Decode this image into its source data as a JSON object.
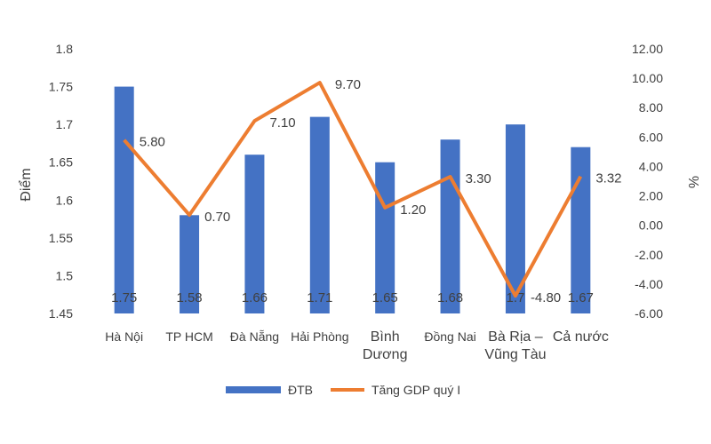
{
  "chart_data": {
    "type": "bar",
    "categories": [
      [
        "Hà Nội"
      ],
      [
        "TP HCM"
      ],
      [
        "Đà Nẵng"
      ],
      [
        "Hải Phòng"
      ],
      [
        "Bình",
        "Dương"
      ],
      [
        "Đồng Nai"
      ],
      [
        "Bà Rịa –",
        "Vũng Tàu"
      ],
      [
        "Cả nước"
      ]
    ],
    "series": [
      {
        "name": "ĐTB",
        "kind": "bar",
        "axis": "left",
        "color": "#4472C4",
        "values": [
          1.75,
          1.58,
          1.66,
          1.71,
          1.65,
          1.68,
          1.7,
          1.67
        ],
        "labels": [
          "1.75",
          "1.58",
          "1.66",
          "1.71",
          "1.65",
          "1.68",
          "1.7",
          "1.67"
        ]
      },
      {
        "name": "Tăng GDP quý I",
        "kind": "line",
        "axis": "right",
        "color": "#ED7D31",
        "values": [
          5.8,
          0.7,
          7.1,
          9.7,
          1.2,
          3.3,
          -4.8,
          3.32
        ],
        "labels": [
          "5.80",
          "0.70",
          "7.10",
          "9.70",
          "1.20",
          "3.30",
          "-4.80",
          "3.32"
        ]
      }
    ],
    "ylabel": "Điểm",
    "y2label": "%",
    "ylim": [
      1.45,
      1.8
    ],
    "yticks": [
      "1.8",
      "1.75",
      "1.7",
      "1.65",
      "1.6",
      "1.55",
      "1.5",
      "1.45"
    ],
    "y2lim": [
      -6,
      12
    ],
    "y2ticks": [
      "12.00",
      "10.00",
      "8.00",
      "6.00",
      "4.00",
      "2.00",
      "0.00",
      "-2.00",
      "-4.00",
      "-6.00"
    ],
    "grid": false,
    "legend": "bottom"
  }
}
